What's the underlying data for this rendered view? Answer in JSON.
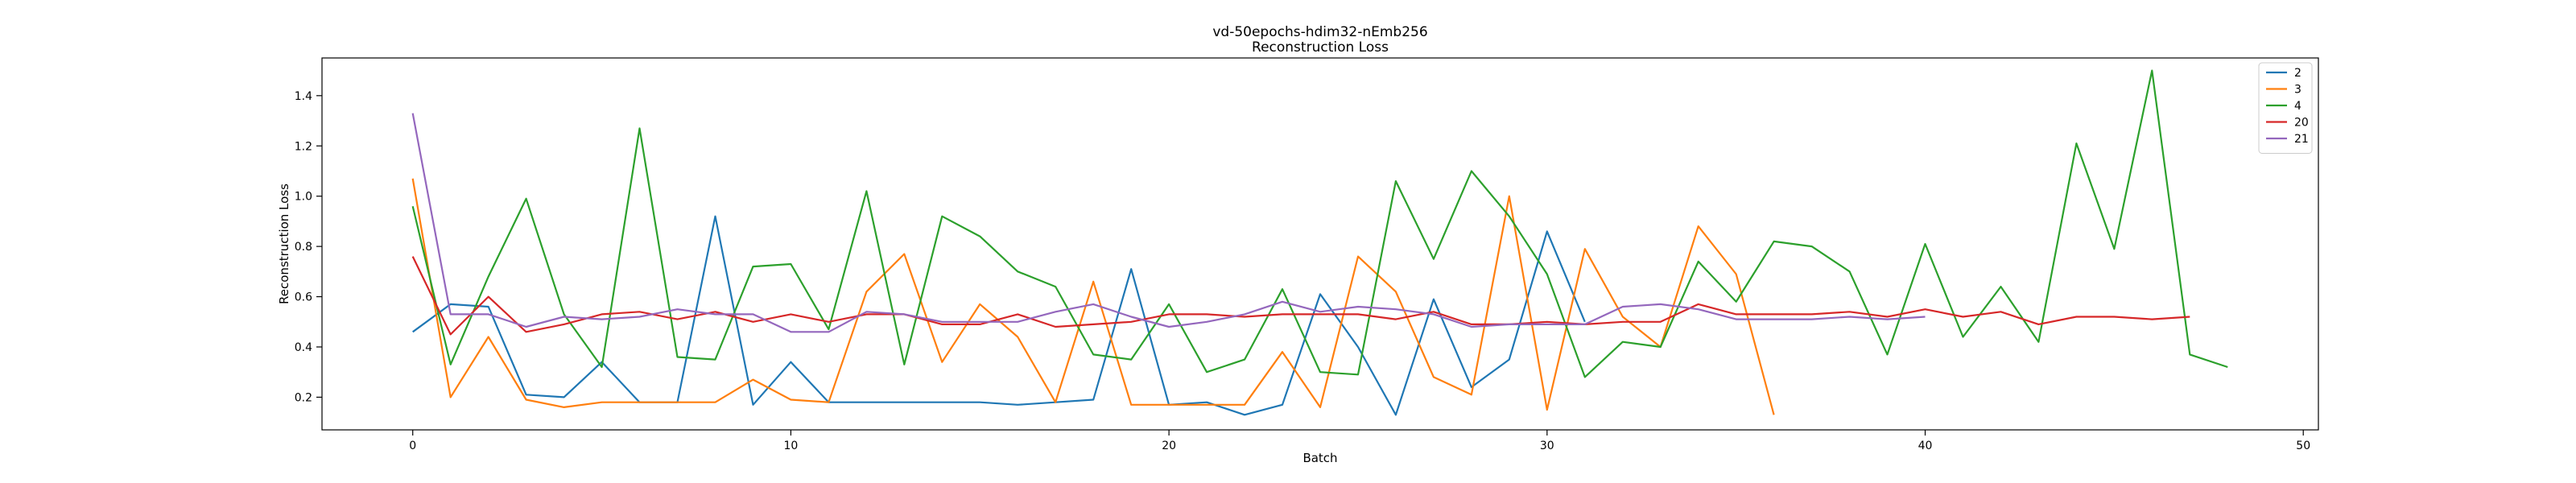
{
  "chart_data": {
    "type": "line",
    "title": "vd-50epochs-hdim32-nEmb256",
    "subtitle": "Reconstruction Loss",
    "xlabel": "Batch",
    "ylabel": "Reconstruction Loss",
    "xlim": [
      -2.4,
      50.4
    ],
    "ylim": [
      0.07,
      1.55
    ],
    "xticks": [
      0,
      10,
      20,
      30,
      40,
      50
    ],
    "yticks": [
      0.2,
      0.4,
      0.6,
      0.8,
      1.0,
      1.2,
      1.4
    ],
    "ytick_labels": [
      "0.2",
      "0.4",
      "0.6",
      "0.8",
      "1.0",
      "1.2",
      "1.4"
    ],
    "grid": false,
    "legend": "top-right",
    "series": [
      {
        "name": "2",
        "color": "#1f77b4",
        "values": [
          0.46,
          0.57,
          0.56,
          0.21,
          0.2,
          0.34,
          0.18,
          0.18,
          0.92,
          0.17,
          0.34,
          0.18,
          0.18,
          0.18,
          0.18,
          0.18,
          0.17,
          0.18,
          0.19,
          0.71,
          0.17,
          0.18,
          0.13,
          0.17,
          0.61,
          0.4,
          0.13,
          0.59,
          0.24,
          0.35,
          0.86,
          0.5
        ]
      },
      {
        "name": "3",
        "color": "#ff7f0e",
        "values": [
          1.07,
          0.2,
          0.44,
          0.19,
          0.16,
          0.18,
          0.18,
          0.18,
          0.18,
          0.27,
          0.19,
          0.18,
          0.62,
          0.77,
          0.34,
          0.57,
          0.44,
          0.18,
          0.66,
          0.17,
          0.17,
          0.17,
          0.17,
          0.38,
          0.16,
          0.76,
          0.62,
          0.28,
          0.21,
          1.0,
          0.15,
          0.79,
          0.52,
          0.4,
          0.88,
          0.69,
          0.13
        ]
      },
      {
        "name": "4",
        "color": "#2ca02c",
        "values": [
          0.96,
          0.33,
          0.68,
          0.99,
          0.53,
          0.32,
          1.27,
          0.36,
          0.35,
          0.72,
          0.73,
          0.47,
          1.02,
          0.33,
          0.92,
          0.84,
          0.7,
          0.64,
          0.37,
          0.35,
          0.57,
          0.3,
          0.35,
          0.63,
          0.3,
          0.29,
          1.06,
          0.75,
          1.1,
          0.92,
          0.69,
          0.28,
          0.42,
          0.4,
          0.74,
          0.58,
          0.82,
          0.8,
          0.7,
          0.37,
          0.81,
          0.44,
          0.64,
          0.42,
          1.21,
          0.79,
          1.5,
          0.37,
          0.32
        ]
      },
      {
        "name": "20",
        "color": "#d62728",
        "values": [
          0.76,
          0.45,
          0.6,
          0.46,
          0.49,
          0.53,
          0.54,
          0.51,
          0.54,
          0.5,
          0.53,
          0.5,
          0.53,
          0.53,
          0.49,
          0.49,
          0.53,
          0.48,
          0.49,
          0.5,
          0.53,
          0.53,
          0.52,
          0.53,
          0.53,
          0.53,
          0.51,
          0.54,
          0.49,
          0.49,
          0.5,
          0.49,
          0.5,
          0.5,
          0.57,
          0.53,
          0.53,
          0.53,
          0.54,
          0.52,
          0.55,
          0.52,
          0.54,
          0.49,
          0.52,
          0.52,
          0.51,
          0.52
        ]
      },
      {
        "name": "21",
        "color": "#9467bd",
        "values": [
          1.33,
          0.53,
          0.53,
          0.48,
          0.52,
          0.51,
          0.52,
          0.55,
          0.53,
          0.53,
          0.46,
          0.46,
          0.54,
          0.53,
          0.5,
          0.5,
          0.5,
          0.54,
          0.57,
          0.52,
          0.48,
          0.5,
          0.53,
          0.58,
          0.54,
          0.56,
          0.55,
          0.53,
          0.48,
          0.49,
          0.49,
          0.49,
          0.56,
          0.57,
          0.55,
          0.51,
          0.51,
          0.51,
          0.52,
          0.51,
          0.52
        ]
      }
    ]
  }
}
